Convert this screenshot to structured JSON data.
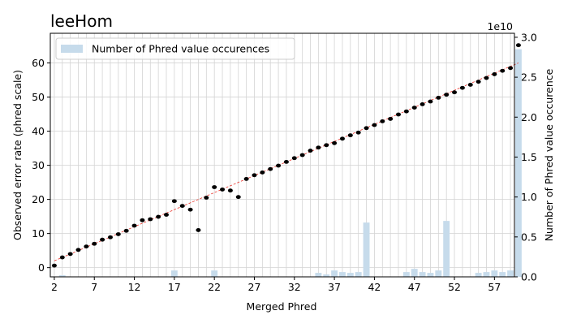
{
  "chart_data": {
    "type": "bar",
    "title": "leeHom",
    "xlabel": "Merged Phred",
    "ylabel": "Observed error rate (phred scale)",
    "y2label": "Number of Phred value occurence",
    "y2_offset_text": "1e10",
    "xlim": [
      1.5,
      59.5
    ],
    "ylim": [
      -2.7,
      68.7
    ],
    "y2lim": [
      0,
      3.05
    ],
    "x_ticks": [
      2,
      7,
      12,
      17,
      22,
      27,
      32,
      37,
      42,
      47,
      52,
      57
    ],
    "y_ticks": [
      0,
      10,
      20,
      30,
      40,
      50,
      60
    ],
    "y2_ticks": [
      0.0,
      0.5,
      1.0,
      1.5,
      2.0,
      2.5,
      3.0
    ],
    "y2_tick_labels": [
      "0.0",
      "0.5",
      "1.0",
      "1.5",
      "2.0",
      "2.5",
      "3.0"
    ],
    "grid": true,
    "legend": {
      "position": "top-left",
      "entries": [
        "Number of Phred value occurences"
      ]
    },
    "colors": {
      "bars": "#c6dbeb",
      "points": "#000000",
      "fit_line": "#e8332b"
    },
    "bars": {
      "x": [
        3,
        17,
        22,
        35,
        36,
        37,
        38,
        39,
        40,
        41,
        46,
        47,
        48,
        49,
        50,
        51,
        55,
        56,
        57,
        58,
        59,
        60
      ],
      "values": [
        0.02,
        0.08,
        0.08,
        0.05,
        0.03,
        0.08,
        0.06,
        0.05,
        0.06,
        0.68,
        0.06,
        0.1,
        0.06,
        0.05,
        0.08,
        0.7,
        0.05,
        0.06,
        0.08,
        0.06,
        0.08,
        2.85
      ]
    },
    "points": {
      "x": [
        2,
        3,
        4,
        5,
        6,
        7,
        8,
        9,
        10,
        11,
        12,
        13,
        14,
        15,
        16,
        17,
        18,
        19,
        20,
        21,
        22,
        23,
        24,
        25,
        26,
        27,
        28,
        29,
        30,
        31,
        32,
        33,
        34,
        35,
        36,
        37,
        38,
        39,
        40,
        41,
        42,
        43,
        44,
        45,
        46,
        47,
        48,
        49,
        50,
        51,
        52,
        53,
        54,
        55,
        56,
        57,
        58,
        59,
        60
      ],
      "y": [
        0.6,
        3.0,
        4.0,
        5.2,
        6.2,
        7.0,
        8.2,
        8.9,
        9.8,
        10.8,
        12.3,
        13.9,
        14.2,
        14.9,
        15.5,
        19.5,
        18.1,
        17.0,
        11.0,
        20.5,
        23.6,
        22.9,
        22.6,
        20.7,
        26.0,
        27.1,
        27.9,
        28.9,
        29.9,
        31.0,
        32.1,
        33.0,
        34.3,
        35.2,
        35.9,
        36.5,
        37.8,
        38.8,
        39.6,
        40.9,
        41.8,
        42.9,
        43.6,
        44.9,
        45.8,
        46.9,
        47.9,
        48.7,
        49.8,
        50.7,
        51.4,
        52.7,
        53.6,
        54.5,
        55.6,
        56.7,
        57.7,
        58.5,
        65.2
      ]
    },
    "fit_line": {
      "x": [
        2,
        60
      ],
      "y": [
        2,
        60
      ]
    }
  }
}
